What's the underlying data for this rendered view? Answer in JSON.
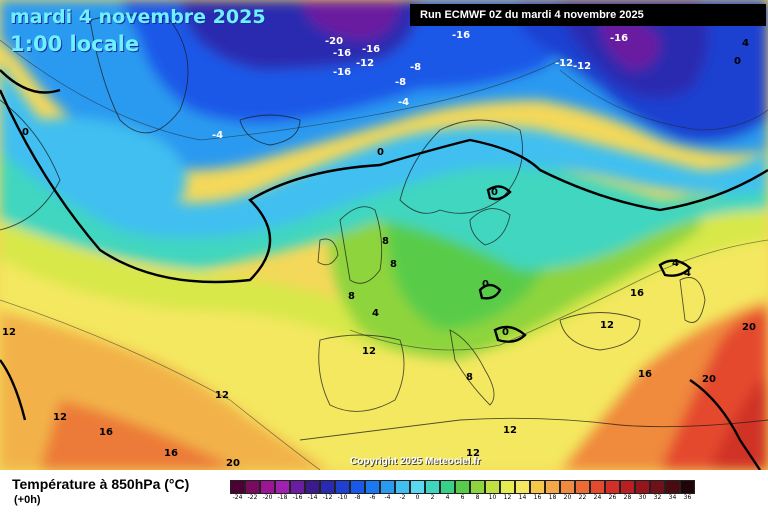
{
  "header": {
    "date": "mardi 4 novembre 2025",
    "time": "1:00 locale",
    "run": "Run ECMWF 0Z du mardi 4 novembre 2025"
  },
  "copyright": "Copyright 2025 Meteociel.fr",
  "footer": {
    "variable": "Température à 850hPa (°C)",
    "lead": "(+0h)"
  },
  "legend": {
    "values": [
      "-24",
      "-22",
      "-20",
      "-18",
      "-16",
      "-14",
      "-12",
      "-10",
      "-8",
      "-6",
      "-4",
      "-2",
      "0",
      "2",
      "4",
      "6",
      "8",
      "10",
      "12",
      "14",
      "16",
      "18",
      "20",
      "22",
      "24",
      "26",
      "28",
      "30",
      "32",
      "34",
      "36"
    ],
    "colors": [
      "#4d0033",
      "#7a0a5e",
      "#9b1596",
      "#a020b0",
      "#6a1da0",
      "#3a1a8c",
      "#2a2ab0",
      "#1f3fd0",
      "#1a58e8",
      "#1a78f0",
      "#2a9af0",
      "#40bff0",
      "#5ad8f0",
      "#3fd6c0",
      "#36d088",
      "#58cc48",
      "#8ed43c",
      "#bfe040",
      "#e4ec50",
      "#f4e860",
      "#f6c84a",
      "#f4a84a",
      "#f08a3e",
      "#ec6a34",
      "#e44a2e",
      "#d42e28",
      "#b81e22",
      "#96141c",
      "#701018",
      "#4a0a10",
      "#200408"
    ]
  },
  "map": {
    "labels": [
      {
        "text": "-20"
      },
      {
        "text": "-16"
      },
      {
        "text": "-16"
      },
      {
        "text": "-12"
      },
      {
        "text": "-16"
      },
      {
        "text": "-8"
      },
      {
        "text": "-8"
      },
      {
        "text": "-4"
      },
      {
        "text": "-16"
      },
      {
        "text": "-12"
      },
      {
        "text": "-12"
      },
      {
        "text": "-16"
      },
      {
        "text": "4"
      },
      {
        "text": "0"
      },
      {
        "text": "-4"
      },
      {
        "text": "0"
      },
      {
        "text": "0"
      },
      {
        "text": "0"
      },
      {
        "text": "8"
      },
      {
        "text": "8"
      },
      {
        "text": "8"
      },
      {
        "text": "4"
      },
      {
        "text": "0"
      },
      {
        "text": "0"
      },
      {
        "text": "4"
      },
      {
        "text": "4"
      },
      {
        "text": "16"
      },
      {
        "text": "12"
      },
      {
        "text": "20"
      },
      {
        "text": "12"
      },
      {
        "text": "12"
      },
      {
        "text": "12"
      },
      {
        "text": "8"
      },
      {
        "text": "16"
      },
      {
        "text": "20"
      },
      {
        "text": "12"
      },
      {
        "text": "16"
      },
      {
        "text": "12"
      },
      {
        "text": "16"
      },
      {
        "text": "20"
      },
      {
        "text": "12"
      }
    ]
  }
}
